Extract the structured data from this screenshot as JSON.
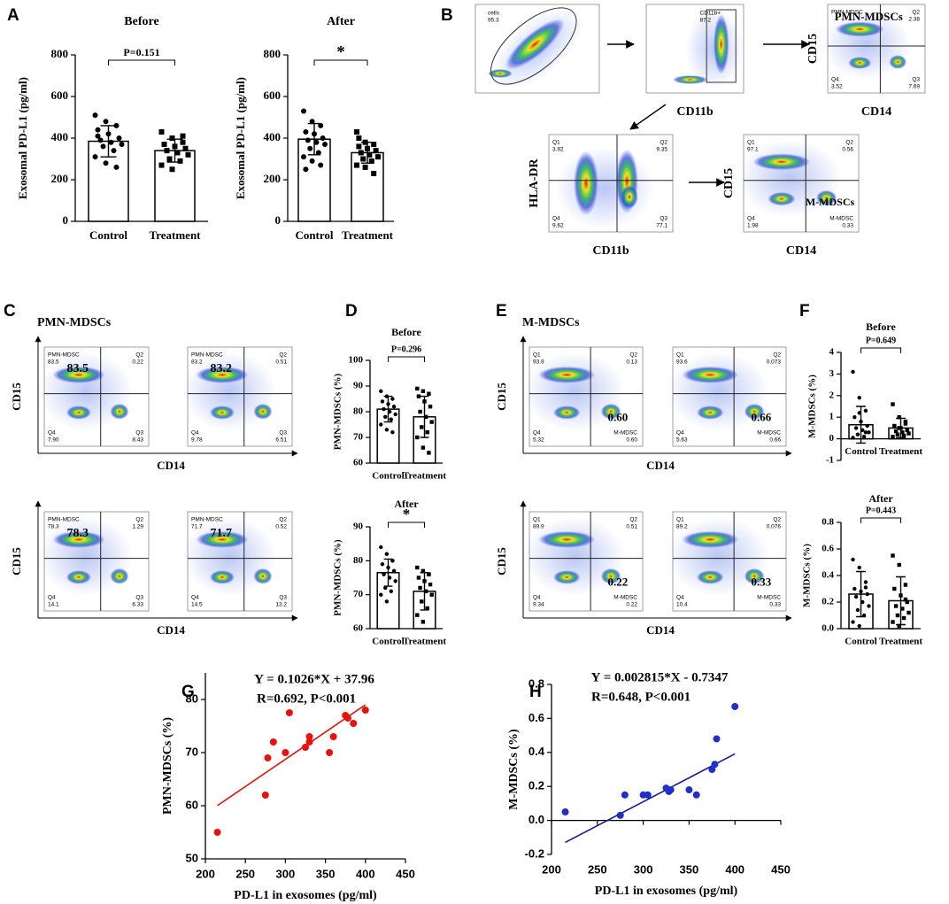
{
  "panels": [
    "A",
    "B",
    "C",
    "D",
    "E",
    "F",
    "G",
    "H"
  ],
  "chart_data": [
    {
      "type": "bar",
      "title": "Before",
      "ylabel": "Exosomal PD-L1 (pg/ml)",
      "categories": [
        "Control",
        "Treatment"
      ],
      "values": [
        385,
        340
      ],
      "errors": [
        75,
        55
      ],
      "points": [
        [
          510,
          480,
          460,
          440,
          420,
          400,
          390,
          380,
          370,
          360,
          340,
          310,
          280,
          260,
          410
        ],
        [
          430,
          400,
          380,
          370,
          360,
          350,
          340,
          330,
          320,
          300,
          290,
          270,
          250,
          410
        ]
      ],
      "ylim": [
        0,
        800
      ],
      "yticks": [
        0,
        200,
        400,
        600,
        800
      ],
      "annotation": "P=0.151"
    },
    {
      "type": "bar",
      "title": "After",
      "ylabel": "Exosomal PD-L1 (pg/ml)",
      "categories": [
        "Control",
        "Treatment"
      ],
      "values": [
        395,
        330
      ],
      "errors": [
        75,
        50
      ],
      "points": [
        [
          530,
          480,
          460,
          430,
          420,
          400,
          390,
          380,
          370,
          350,
          330,
          310,
          290,
          270,
          250
        ],
        [
          430,
          380,
          370,
          360,
          350,
          340,
          330,
          320,
          310,
          300,
          290,
          270,
          260,
          230,
          400
        ]
      ],
      "ylim": [
        0,
        800
      ],
      "yticks": [
        0,
        200,
        400,
        600,
        800
      ],
      "annotation": "*"
    },
    {
      "type": "bar",
      "title": "Before",
      "ylabel": "PMN-MDSCs (%)",
      "categories": [
        "Control",
        "Treatment"
      ],
      "values": [
        81,
        78
      ],
      "errors": [
        5,
        8
      ],
      "points": [
        [
          88,
          86,
          85,
          84,
          83,
          82,
          81,
          80,
          79,
          78,
          77,
          75,
          73,
          72
        ],
        [
          89,
          88,
          87,
          86,
          84,
          82,
          80,
          78,
          76,
          74,
          72,
          70,
          66,
          64
        ]
      ],
      "ylim": [
        60,
        100
      ],
      "yticks": [
        60,
        70,
        80,
        90,
        100
      ],
      "annotation": "P=0.296"
    },
    {
      "type": "bar",
      "title": "After",
      "ylabel": "PMN-MDSCs (%)",
      "categories": [
        "Control",
        "Treatment"
      ],
      "values": [
        76.5,
        71
      ],
      "errors": [
        4,
        5.5
      ],
      "points": [
        [
          84,
          82,
          80,
          79,
          78,
          77,
          76,
          75,
          74,
          72,
          71,
          70,
          68,
          80
        ],
        [
          78,
          77,
          76,
          75,
          74,
          73,
          72,
          71,
          70,
          68,
          66,
          64,
          62,
          76
        ]
      ],
      "ylim": [
        60,
        90
      ],
      "yticks": [
        60,
        70,
        80,
        90
      ],
      "annotation": "*"
    },
    {
      "type": "bar",
      "title": "Before",
      "ylabel": "M-MDSCs (%)",
      "categories": [
        "Control",
        "Treatment"
      ],
      "values": [
        0.65,
        0.5
      ],
      "errors": [
        0.85,
        0.45
      ],
      "points": [
        [
          3.1,
          1.9,
          1.3,
          1.0,
          0.8,
          0.6,
          0.5,
          0.4,
          0.3,
          0.2,
          0.1,
          0.05,
          1.2,
          0.3
        ],
        [
          1.6,
          1.0,
          0.8,
          0.6,
          0.5,
          0.4,
          0.35,
          0.3,
          0.25,
          0.2,
          0.15,
          0.1,
          0.5,
          0.7
        ]
      ],
      "ylim": [
        -1,
        4
      ],
      "yticks": [
        -1,
        0,
        1,
        2,
        3,
        4
      ],
      "annotation": "P=0.649"
    },
    {
      "type": "bar",
      "title": "After",
      "ylabel": "M-MDSCs (%)",
      "categories": [
        "Control",
        "Treatment"
      ],
      "values": [
        0.26,
        0.21
      ],
      "errors": [
        0.17,
        0.18
      ],
      "points": [
        [
          0.52,
          0.46,
          0.35,
          0.3,
          0.28,
          0.26,
          0.24,
          0.2,
          0.17,
          0.14,
          0.1,
          0.05,
          0.02,
          0.31
        ],
        [
          0.55,
          0.48,
          0.33,
          0.3,
          0.25,
          0.2,
          0.17,
          0.15,
          0.12,
          0.1,
          0.08,
          0.05,
          0.02,
          0.22
        ]
      ],
      "ylim": [
        0,
        0.8
      ],
      "yticks": [
        {
          "value": 0,
          "label": "0.0"
        },
        0.2,
        0.4,
        0.6,
        0.8
      ],
      "annotation": "P=0.443"
    },
    {
      "type": "scatter",
      "xlabel": "PD-L1 in exosomes (pg/ml)",
      "ylabel": "PMN-MDSCs (%)",
      "color": "#e8120c",
      "fit_color": "#e8120c",
      "annotations": [
        "Y = 0.1026*X + 37.96",
        "R=0.692, P<0.001"
      ],
      "fit": {
        "slope": 0.1026,
        "intercept": 37.96
      },
      "x": [
        215,
        275,
        278,
        285,
        300,
        305,
        325,
        330,
        330,
        355,
        360,
        375,
        378,
        385,
        400
      ],
      "y": [
        55,
        62,
        69,
        72,
        70,
        77.5,
        71,
        73,
        72,
        70,
        73,
        77,
        76.5,
        75.5,
        78
      ],
      "xlim": [
        200,
        450
      ],
      "xticks": [
        200,
        250,
        300,
        350,
        400,
        450
      ],
      "ylim": [
        50,
        85
      ],
      "yticks": [
        50,
        60,
        70,
        80
      ]
    },
    {
      "type": "scatter",
      "xlabel": "PD-L1 in exosomes (pg/ml)",
      "ylabel": "M-MDSCs (%)",
      "color": "#1f2fc8",
      "fit_color": "#1a1a9a",
      "annotations": [
        "Y = 0.002815*X - 0.7347",
        "R=0.648, P<0.001"
      ],
      "fit": {
        "slope": 0.002815,
        "intercept": -0.7347
      },
      "x": [
        215,
        275,
        280,
        300,
        305,
        325,
        328,
        330,
        350,
        358,
        375,
        378,
        380,
        400
      ],
      "y": [
        0.05,
        0.03,
        0.15,
        0.15,
        0.15,
        0.19,
        0.17,
        0.18,
        0.18,
        0.15,
        0.3,
        0.33,
        0.48,
        0.67
      ],
      "xlim": [
        200,
        450
      ],
      "xticks": [
        200,
        250,
        300,
        350,
        400,
        450
      ],
      "ylim": [
        -0.2,
        0.8
      ],
      "yticks": [
        -0.2,
        {
          "value": 0,
          "label": "0.0"
        },
        0.2,
        0.4,
        0.6,
        0.8
      ]
    }
  ],
  "flow": {
    "B": {
      "plots": [
        {
          "gate": "cells",
          "value": "95.3"
        },
        {
          "gate": "CD11b+",
          "value": "87.2",
          "xlabel": "CD11b"
        },
        {
          "q1": {
            "name": "PMN-MDSC"
          },
          "q2": {
            "name": "Q2",
            "value": "2.38"
          },
          "q3": {
            "name": "Q3",
            "value": "7.69"
          },
          "q4": {
            "name": "Q4",
            "value": "3.52"
          },
          "highlight": "PMN-MDSCs",
          "xlabel": "CD14",
          "ylabel": "CD15"
        },
        {
          "q1": {
            "name": "Q1",
            "value": "3.92"
          },
          "q2": {
            "name": "Q2",
            "value": "9.35"
          },
          "q3": {
            "name": "Q3",
            "value": "77.1"
          },
          "q4": {
            "name": "Q4",
            "value": "9.62"
          },
          "xlabel": "CD11b",
          "ylabel": "HLA-DR"
        },
        {
          "q1": {
            "name": "Q1",
            "value": "97.1"
          },
          "q2": {
            "name": "Q2",
            "value": "0.56"
          },
          "q3": {
            "name": "M-MDSC",
            "value": "0.33"
          },
          "q4": {
            "name": "Q4",
            "value": "1.98"
          },
          "highlight": "M-MDSCs",
          "xlabel": "CD14",
          "ylabel": "CD15"
        }
      ]
    },
    "C": {
      "title": "PMN-MDSCs",
      "xlabel": "CD14",
      "ylabel": "CD15",
      "plots": [
        {
          "q1": {
            "name": "PMN-MDSC",
            "value": "83.5"
          },
          "q2": {
            "name": "Q2",
            "value": "0.22"
          },
          "q3": {
            "name": "Q3",
            "value": "8.43"
          },
          "q4": {
            "name": "Q4",
            "value": "7.90"
          },
          "highlight": "83.5"
        },
        {
          "q1": {
            "name": "PMN-MDSC",
            "value": "83.2"
          },
          "q2": {
            "name": "Q2",
            "value": "0.51"
          },
          "q3": {
            "name": "Q3",
            "value": "6.51"
          },
          "q4": {
            "name": "Q4",
            "value": "9.78"
          },
          "highlight": "83.2"
        },
        {
          "q1": {
            "name": "PMN-MDSC",
            "value": "78.3"
          },
          "q2": {
            "name": "Q2",
            "value": "1.29"
          },
          "q3": {
            "name": "Q3",
            "value": "6.33"
          },
          "q4": {
            "name": "Q4",
            "value": "14.1"
          },
          "highlight": "78.3"
        },
        {
          "q1": {
            "name": "PMN-MDSC",
            "value": "71.7"
          },
          "q2": {
            "name": "Q2",
            "value": "0.52"
          },
          "q3": {
            "name": "Q3",
            "value": "13.2"
          },
          "q4": {
            "name": "Q4",
            "value": "14.5"
          },
          "highlight": "71.7"
        }
      ]
    },
    "E": {
      "title": "M-MDSCs",
      "xlabel": "CD14",
      "ylabel": "CD15",
      "plots": [
        {
          "q1": {
            "name": "Q1",
            "value": "93.9"
          },
          "q2": {
            "name": "Q2",
            "value": "0.13"
          },
          "q3": {
            "name": "M-MDSC",
            "value": "0.60"
          },
          "q4": {
            "name": "Q4",
            "value": "5.32"
          },
          "highlight": "0.60"
        },
        {
          "q1": {
            "name": "Q1",
            "value": "93.6"
          },
          "q2": {
            "name": "Q2",
            "value": "0.073"
          },
          "q3": {
            "name": "M-MDSC",
            "value": "0.66"
          },
          "q4": {
            "name": "Q4",
            "value": "5.63"
          },
          "highlight": "0.66"
        },
        {
          "q1": {
            "name": "Q1",
            "value": "89.9"
          },
          "q2": {
            "name": "Q2",
            "value": "0.51"
          },
          "q3": {
            "name": "M-MDSC",
            "value": "0.22"
          },
          "q4": {
            "name": "Q4",
            "value": "9.34"
          },
          "highlight": "0.22"
        },
        {
          "q1": {
            "name": "Q1",
            "value": "89.2"
          },
          "q2": {
            "name": "Q2",
            "value": "0.076"
          },
          "q3": {
            "name": "M-MDSC",
            "value": "0.33"
          },
          "q4": {
            "name": "Q4",
            "value": "10.4"
          },
          "highlight": "0.33"
        }
      ]
    }
  }
}
